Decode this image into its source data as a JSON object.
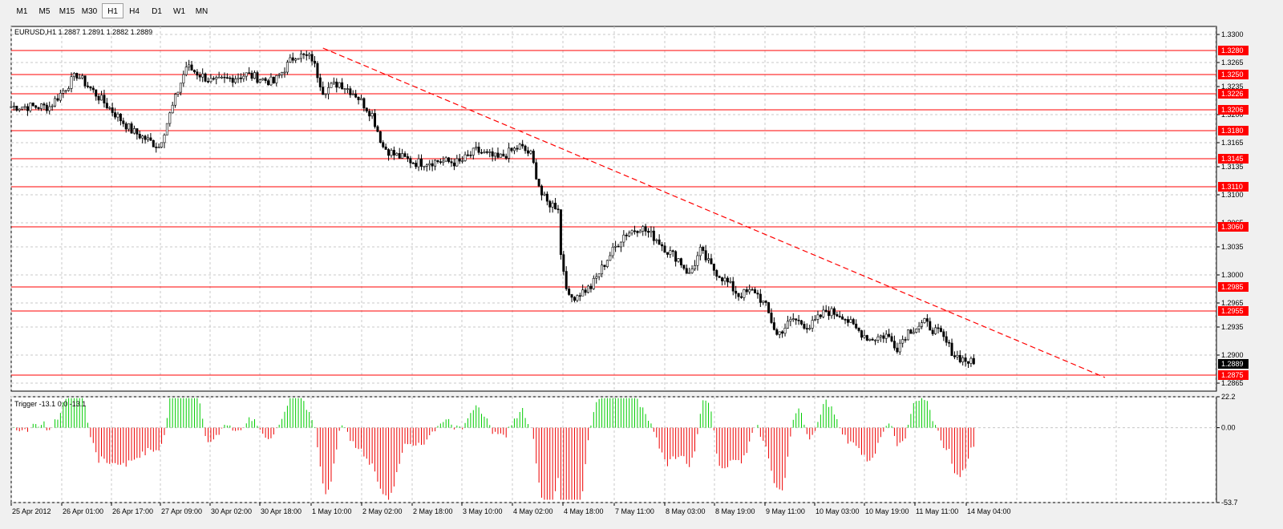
{
  "toolbar": {
    "timeframes": [
      "M1",
      "M5",
      "M15",
      "M30",
      "H1",
      "H4",
      "D1",
      "W1",
      "MN"
    ],
    "active": "H1"
  },
  "chart_data": {
    "type": "candlestick",
    "symbol_info": "EURUSD,H1  1.2887 1.2891 1.2882 1.2889",
    "current_price": "1.2889",
    "ylim": [
      1.2855,
      1.331
    ],
    "y_ticks": [
      "1.3300",
      "1.3265",
      "1.3235",
      "1.3200",
      "1.3165",
      "1.3135",
      "1.3100",
      "1.3065",
      "1.3035",
      "1.3000",
      "1.2965",
      "1.2935",
      "1.2900",
      "1.2865"
    ],
    "x_labels": [
      "25 Apr 2012",
      "26 Apr 01:00",
      "26 Apr 17:00",
      "27 Apr 09:00",
      "30 Apr 02:00",
      "30 Apr 18:00",
      "1 May 10:00",
      "2 May 02:00",
      "2 May 18:00",
      "3 May 10:00",
      "4 May 02:00",
      "4 May 18:00",
      "7 May 11:00",
      "8 May 03:00",
      "8 May 19:00",
      "9 May 11:00",
      "10 May 03:00",
      "10 May 19:00",
      "11 May 11:00",
      "14 May 04:00"
    ],
    "levels": [
      "1.3280",
      "1.3250",
      "1.3226",
      "1.3206",
      "1.3180",
      "1.3145",
      "1.3110",
      "1.3060",
      "1.2985",
      "1.2955",
      "1.2875"
    ],
    "level_color": "#ff0000",
    "trendline": {
      "from": {
        "bar": 114,
        "price": 1.3283
      },
      "to": {
        "bar": 400,
        "price": 1.2872
      },
      "color": "#ff0000",
      "style": "dashed"
    },
    "path": [
      [
        0,
        1.321
      ],
      [
        14,
        1.321
      ],
      [
        24,
        1.325
      ],
      [
        34,
        1.3215
      ],
      [
        44,
        1.318
      ],
      [
        54,
        1.316
      ],
      [
        64,
        1.326
      ],
      [
        74,
        1.324
      ],
      [
        86,
        1.325
      ],
      [
        96,
        1.324
      ],
      [
        104,
        1.3275
      ],
      [
        110,
        1.327
      ],
      [
        114,
        1.323
      ],
      [
        120,
        1.324
      ],
      [
        126,
        1.3225
      ],
      [
        132,
        1.32
      ],
      [
        136,
        1.316
      ],
      [
        140,
        1.315
      ],
      [
        148,
        1.314
      ],
      [
        156,
        1.3142
      ],
      [
        164,
        1.314
      ],
      [
        170,
        1.3155
      ],
      [
        178,
        1.3145
      ],
      [
        186,
        1.316
      ],
      [
        190,
        1.315
      ],
      [
        194,
        1.31
      ],
      [
        196,
        1.309
      ],
      [
        200,
        1.3085
      ],
      [
        201,
        1.3025
      ],
      [
        204,
        1.297
      ],
      [
        212,
        1.2985
      ],
      [
        218,
        1.302
      ],
      [
        224,
        1.305
      ],
      [
        230,
        1.306
      ],
      [
        236,
        1.3045
      ],
      [
        240,
        1.303
      ],
      [
        244,
        1.302
      ],
      [
        248,
        1.3
      ],
      [
        252,
        1.303
      ],
      [
        256,
        1.301
      ],
      [
        262,
        1.299
      ],
      [
        266,
        1.2975
      ],
      [
        272,
        1.298
      ],
      [
        276,
        1.296
      ],
      [
        280,
        1.2925
      ],
      [
        286,
        1.2945
      ],
      [
        292,
        1.2935
      ],
      [
        298,
        1.2955
      ],
      [
        304,
        1.295
      ],
      [
        308,
        1.2935
      ],
      [
        314,
        1.292
      ],
      [
        320,
        1.2925
      ],
      [
        324,
        1.291
      ],
      [
        328,
        1.293
      ],
      [
        334,
        1.294
      ],
      [
        340,
        1.2925
      ],
      [
        344,
        1.2905
      ],
      [
        345,
        1.29
      ],
      [
        348,
        1.2895
      ],
      [
        352,
        1.2889
      ]
    ],
    "indicator": {
      "label": "Trigger -13.1 0.0 -13.1",
      "ylim": [
        -53.7,
        22.2
      ],
      "y_ticks": [
        "22.2",
        "0.00",
        "-53.7"
      ],
      "up_color": "#00cc00",
      "down_color": "#ee0000"
    }
  }
}
